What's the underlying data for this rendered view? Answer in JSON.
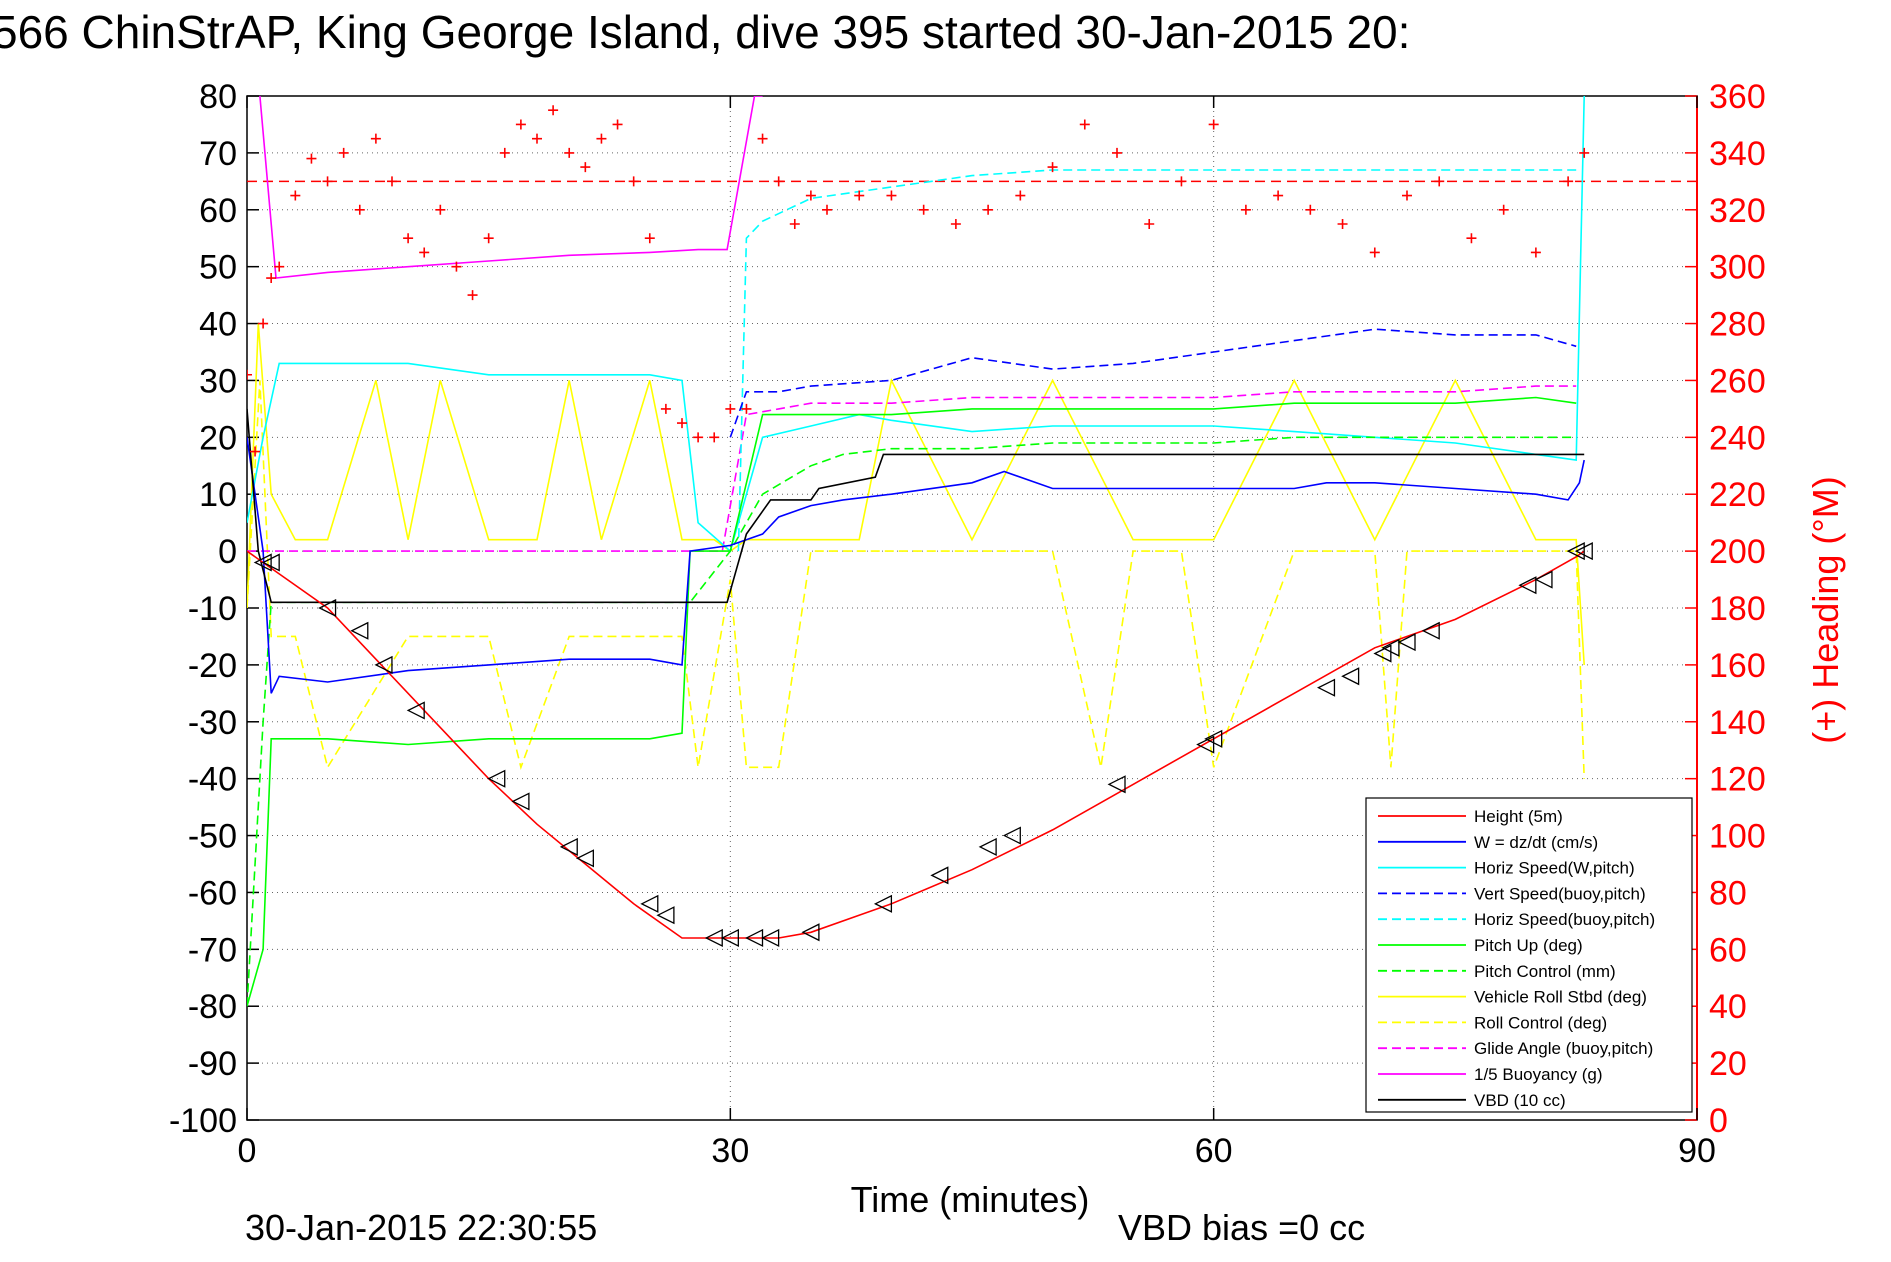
{
  "title": "566 ChinStrAP, King George Island, dive 395 started 30-Jan-2015 20:",
  "footer": {
    "timestamp": "30-Jan-2015 22:30:55",
    "vbd_bias": "VBD bias =0 cc"
  },
  "chart_data": {
    "type": "line",
    "xlabel": "Time (minutes)",
    "ylabel_right": "(+) Heading (°M)",
    "xlim": [
      0,
      90
    ],
    "ylim_left": [
      -100,
      80
    ],
    "ylim_right": [
      0,
      360
    ],
    "x_ticks": [
      "0",
      "30",
      "60",
      "90"
    ],
    "y_ticks_left": [
      "80",
      "70",
      "60",
      "50",
      "40",
      "30",
      "20",
      "10",
      "0",
      "-10",
      "-20",
      "-30",
      "-40",
      "-50",
      "-60",
      "-70",
      "-80",
      "-90",
      "-100"
    ],
    "y_ticks_right": [
      "360",
      "340",
      "320",
      "300",
      "280",
      "260",
      "240",
      "220",
      "200",
      "180",
      "160",
      "140",
      "120",
      "100",
      "80",
      "60",
      "40",
      "20",
      "0"
    ],
    "grid": true,
    "legend_position": "lower-right",
    "legend": [
      {
        "name": "Height (5m)",
        "color": "#ff0000",
        "dash": "solid"
      },
      {
        "name": "W = dz/dt (cm/s)",
        "color": "#0000ff",
        "dash": "solid"
      },
      {
        "name": "Horiz Speed(W,pitch)",
        "color": "#00ffff",
        "dash": "solid"
      },
      {
        "name": "Vert Speed(buoy,pitch)",
        "color": "#0000ff",
        "dash": "dashed"
      },
      {
        "name": "Horiz Speed(buoy,pitch)",
        "color": "#00ffff",
        "dash": "dashed"
      },
      {
        "name": "Pitch Up (deg)",
        "color": "#00ff00",
        "dash": "solid"
      },
      {
        "name": "Pitch Control (mm)",
        "color": "#00ff00",
        "dash": "dashed"
      },
      {
        "name": "Vehicle Roll Stbd (deg)",
        "color": "#ffff00",
        "dash": "solid"
      },
      {
        "name": "Roll Control (deg)",
        "color": "#ffff00",
        "dash": "dashed"
      },
      {
        "name": "Glide Angle (buoy,pitch)",
        "color": "#ff00ff",
        "dash": "dashed"
      },
      {
        "name": "1/5 Buoyancy (g)",
        "color": "#ff00ff",
        "dash": "solid"
      },
      {
        "name": "VBD (10 cc)",
        "color": "#000000",
        "dash": "solid"
      }
    ],
    "heading_reference_deg": 330,
    "series": [
      {
        "name": "Height (5m)",
        "color": "#ff0000",
        "dash": "solid",
        "x": [
          0,
          1,
          2,
          5,
          8,
          11,
          15,
          18,
          21,
          24,
          27,
          28,
          30,
          32,
          33,
          35,
          40,
          45,
          50,
          55,
          60,
          65,
          70,
          75,
          80,
          82.5,
          83
        ],
        "y": [
          0,
          -2,
          -4,
          -10,
          -19,
          -28,
          -40,
          -48,
          -55,
          -62,
          -68,
          -68,
          -68,
          -68,
          -68,
          -67,
          -62,
          -56,
          -49,
          -41,
          -33,
          -25,
          -17,
          -12,
          -5,
          -1,
          0
        ]
      },
      {
        "name": "W = dz/dt (cm/s)",
        "color": "#0000ff",
        "dash": "solid",
        "x": [
          0,
          1,
          1.5,
          2,
          5,
          10,
          15,
          20,
          25,
          27,
          27.5,
          30,
          32,
          33,
          35,
          37,
          40,
          45,
          47,
          50,
          55,
          60,
          65,
          67,
          70,
          75,
          80,
          82,
          82.7,
          83
        ],
        "y": [
          20,
          0,
          -25,
          -22,
          -23,
          -21,
          -20,
          -19,
          -19,
          -20,
          0,
          1,
          3,
          6,
          8,
          9,
          10,
          12,
          14,
          11,
          11,
          11,
          11,
          12,
          12,
          11,
          10,
          9,
          12,
          16
        ]
      },
      {
        "name": "Horiz Speed(W,pitch)",
        "color": "#00ffff",
        "dash": "solid",
        "x": [
          0,
          1,
          2,
          5,
          10,
          15,
          20,
          25,
          27,
          28,
          30,
          32,
          35,
          38,
          40,
          45,
          50,
          55,
          60,
          65,
          70,
          75,
          80,
          82.5,
          83
        ],
        "y": [
          5,
          20,
          33,
          33,
          33,
          31,
          31,
          31,
          30,
          5,
          0,
          20,
          22,
          24,
          23,
          21,
          22,
          22,
          22,
          21,
          20,
          19,
          17,
          16,
          80
        ]
      },
      {
        "name": "Vert Speed(buoy,pitch)",
        "color": "#0000ff",
        "dash": "dashed",
        "x": [
          30,
          31,
          33,
          35,
          40,
          45,
          50,
          55,
          60,
          65,
          70,
          75,
          80,
          82.5
        ],
        "y": [
          20,
          28,
          28,
          29,
          30,
          34,
          32,
          33,
          35,
          37,
          39,
          38,
          38,
          36
        ]
      },
      {
        "name": "Horiz Speed(buoy,pitch)",
        "color": "#00ffff",
        "dash": "dashed",
        "x": [
          30.5,
          31,
          32,
          35,
          40,
          45,
          50,
          55,
          60,
          65,
          70,
          75,
          80,
          82.5
        ],
        "y": [
          0,
          55,
          58,
          62,
          64,
          66,
          67,
          67,
          67,
          67,
          67,
          67,
          67,
          67
        ]
      },
      {
        "name": "Pitch Up (deg)",
        "color": "#00ff00",
        "dash": "solid",
        "x": [
          0,
          1,
          1.5,
          2,
          5,
          10,
          15,
          20,
          25,
          27,
          27.5,
          30,
          32,
          35,
          40,
          45,
          50,
          55,
          60,
          65,
          70,
          75,
          80,
          82.5
        ],
        "y": [
          -80,
          -70,
          -33,
          -33,
          -33,
          -34,
          -33,
          -33,
          -33,
          -32,
          0,
          0,
          24,
          24,
          24,
          25,
          25,
          25,
          25,
          26,
          26,
          26,
          27,
          26
        ]
      },
      {
        "name": "Pitch Control (mm)",
        "color": "#00ff00",
        "dash": "dashed",
        "x": [
          0,
          1,
          1.5,
          2,
          10,
          20,
          27,
          27.5,
          30,
          31,
          32,
          35,
          37,
          40,
          45,
          50,
          55,
          60,
          65,
          70,
          75,
          80,
          82.5
        ],
        "y": [
          -80,
          -30,
          -9,
          -9,
          -9,
          -9,
          -9,
          -9,
          0,
          5,
          10,
          15,
          17,
          18,
          18,
          19,
          19,
          19,
          20,
          20,
          20,
          20,
          20
        ]
      },
      {
        "name": "Vehicle Roll Stbd (deg)",
        "color": "#ffff00",
        "dash": "solid",
        "x": [
          0,
          0.7,
          1.5,
          3,
          5,
          8,
          10,
          12,
          15,
          18,
          20,
          22,
          25,
          27,
          29,
          30,
          31,
          33,
          35,
          38,
          40,
          45,
          50,
          55,
          60,
          65,
          70,
          75,
          80,
          82.5,
          83
        ],
        "y": [
          -10,
          40,
          10,
          2,
          2,
          30,
          2,
          30,
          2,
          2,
          30,
          2,
          30,
          2,
          2,
          0,
          2,
          2,
          2,
          2,
          30,
          2,
          30,
          2,
          2,
          30,
          2,
          30,
          2,
          2,
          -20
        ]
      },
      {
        "name": "Roll Control (deg)",
        "color": "#ffff00",
        "dash": "dashed",
        "x": [
          0,
          0.8,
          1.5,
          3,
          5,
          10,
          15,
          17,
          20,
          22,
          25,
          27,
          28,
          30,
          31,
          33,
          35,
          38,
          40,
          45,
          50,
          53,
          55,
          58,
          60,
          65,
          70,
          71,
          72,
          75,
          80,
          82.5,
          83
        ],
        "y": [
          -10,
          30,
          -15,
          -15,
          -38,
          -15,
          -15,
          -38,
          -15,
          -15,
          -15,
          -15,
          -38,
          -5,
          -38,
          -38,
          0,
          0,
          0,
          0,
          0,
          -38,
          0,
          0,
          -38,
          0,
          0,
          -38,
          0,
          0,
          0,
          0,
          -40
        ]
      },
      {
        "name": "Glide Angle (buoy,pitch)",
        "color": "#ff00ff",
        "dash": "dashed",
        "x": [
          0,
          10,
          20,
          29.5,
          31,
          33,
          35,
          40,
          45,
          50,
          55,
          60,
          65,
          70,
          75,
          80,
          82.5
        ],
        "y": [
          0,
          0,
          0,
          0,
          24,
          25,
          26,
          26,
          27,
          27,
          27,
          27,
          28,
          28,
          28,
          29,
          29
        ]
      },
      {
        "name": "1/5 Buoyancy (g)",
        "color": "#ff00ff",
        "dash": "solid",
        "x": [
          0.8,
          1.8,
          5,
          10,
          15,
          20,
          25,
          28,
          29.8,
          31.5,
          32
        ],
        "y": [
          80,
          48,
          49,
          50,
          51,
          52,
          52.5,
          53,
          53,
          80,
          80
        ]
      },
      {
        "name": "VBD (10 cc)",
        "color": "#000000",
        "dash": "solid",
        "x": [
          0,
          0.7,
          1.5,
          5,
          10,
          15,
          20,
          25,
          29.8,
          31,
          32.5,
          35,
          35.5,
          39,
          39.5,
          40,
          50,
          60,
          70,
          80,
          83
        ],
        "y": [
          25,
          0,
          -9,
          -9,
          -9,
          -9,
          -9,
          -9,
          -9,
          3,
          9,
          9,
          11,
          13,
          17,
          17,
          17,
          17,
          17,
          17,
          17
        ]
      },
      {
        "name": "Heading",
        "color": "#ff0000",
        "dash": "markers",
        "axis": "right",
        "x": [
          0,
          0.5,
          1,
          1.5,
          2,
          3,
          4,
          5,
          6,
          7,
          8,
          9,
          10,
          11,
          12,
          13,
          14,
          15,
          16,
          17,
          18,
          19,
          20,
          21,
          22,
          23,
          24,
          25,
          26,
          27,
          28,
          29,
          30,
          31,
          32,
          33,
          34,
          35,
          36,
          38,
          40,
          42,
          44,
          46,
          48,
          50,
          52,
          54,
          56,
          58,
          60,
          62,
          64,
          66,
          68,
          70,
          72,
          74,
          76,
          78,
          80,
          82,
          83
        ],
        "y": [
          262,
          235,
          280,
          296,
          300,
          325,
          338,
          330,
          340,
          320,
          345,
          330,
          310,
          305,
          320,
          300,
          290,
          310,
          340,
          350,
          345,
          355,
          340,
          335,
          345,
          350,
          330,
          310,
          250,
          245,
          240,
          240,
          250,
          250,
          345,
          330,
          315,
          325,
          320,
          325,
          325,
          320,
          315,
          320,
          325,
          335,
          350,
          340,
          315,
          330,
          350,
          320,
          325,
          320,
          315,
          305,
          325,
          330,
          310,
          320,
          305,
          330,
          340
        ]
      }
    ],
    "dive_markers": {
      "x": [
        1,
        1.5,
        5,
        7,
        8.5,
        10.5,
        15.5,
        17,
        20,
        21,
        25,
        26,
        29,
        30,
        31.5,
        32.5,
        35,
        39.5,
        43,
        46,
        47.5,
        54,
        59.5,
        60,
        67,
        68.5,
        70.5,
        71,
        72,
        73.5,
        79.5,
        80.5,
        82.5,
        83
      ],
      "y": [
        -2,
        -2,
        -10,
        -14,
        -20,
        -28,
        -40,
        -44,
        -52,
        -54,
        -62,
        -64,
        -68,
        -68,
        -68,
        -68,
        -67,
        -62,
        -57,
        -52,
        -50,
        -41,
        -34,
        -33,
        -24,
        -22,
        -18,
        -17,
        -16,
        -14,
        -6,
        -5,
        0,
        0
      ]
    }
  }
}
